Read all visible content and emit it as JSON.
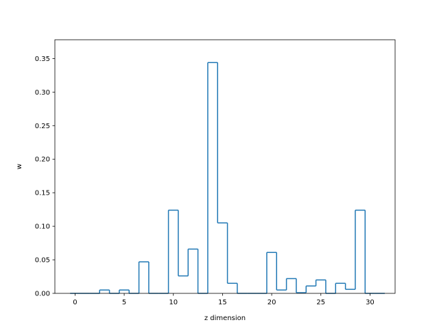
{
  "chart_data": {
    "type": "step",
    "xlabel": "z dimension",
    "ylabel": "w",
    "xlim": [
      -2.05,
      32.55
    ],
    "ylim": [
      0,
      0.378
    ],
    "xticks": [
      0,
      5,
      10,
      15,
      20,
      25,
      30
    ],
    "yticks": [
      0.0,
      0.05,
      0.1,
      0.15,
      0.2,
      0.25,
      0.3,
      0.35
    ],
    "grid": false,
    "colors": {
      "line": "#1f77b4"
    },
    "bins": [
      {
        "z": 0,
        "w": 0.0
      },
      {
        "z": 1,
        "w": 0.0
      },
      {
        "z": 2,
        "w": 0.0
      },
      {
        "z": 3,
        "w": 0.005
      },
      {
        "z": 4,
        "w": 0.0
      },
      {
        "z": 5,
        "w": 0.005
      },
      {
        "z": 6,
        "w": 0.0
      },
      {
        "z": 7,
        "w": 0.047
      },
      {
        "z": 8,
        "w": 0.0
      },
      {
        "z": 9,
        "w": 0.0
      },
      {
        "z": 10,
        "w": 0.124
      },
      {
        "z": 11,
        "w": 0.026
      },
      {
        "z": 12,
        "w": 0.066
      },
      {
        "z": 13,
        "w": 0.0
      },
      {
        "z": 14,
        "w": 0.344
      },
      {
        "z": 15,
        "w": 0.105
      },
      {
        "z": 16,
        "w": 0.015
      },
      {
        "z": 17,
        "w": 0.0
      },
      {
        "z": 18,
        "w": 0.0
      },
      {
        "z": 19,
        "w": 0.0
      },
      {
        "z": 20,
        "w": 0.061
      },
      {
        "z": 21,
        "w": 0.005
      },
      {
        "z": 22,
        "w": 0.022
      },
      {
        "z": 23,
        "w": 0.001
      },
      {
        "z": 24,
        "w": 0.011
      },
      {
        "z": 25,
        "w": 0.02
      },
      {
        "z": 26,
        "w": 0.0
      },
      {
        "z": 27,
        "w": 0.015
      },
      {
        "z": 28,
        "w": 0.006
      },
      {
        "z": 29,
        "w": 0.124
      },
      {
        "z": 30,
        "w": 0.0
      },
      {
        "z": 31,
        "w": 0.0
      }
    ]
  }
}
